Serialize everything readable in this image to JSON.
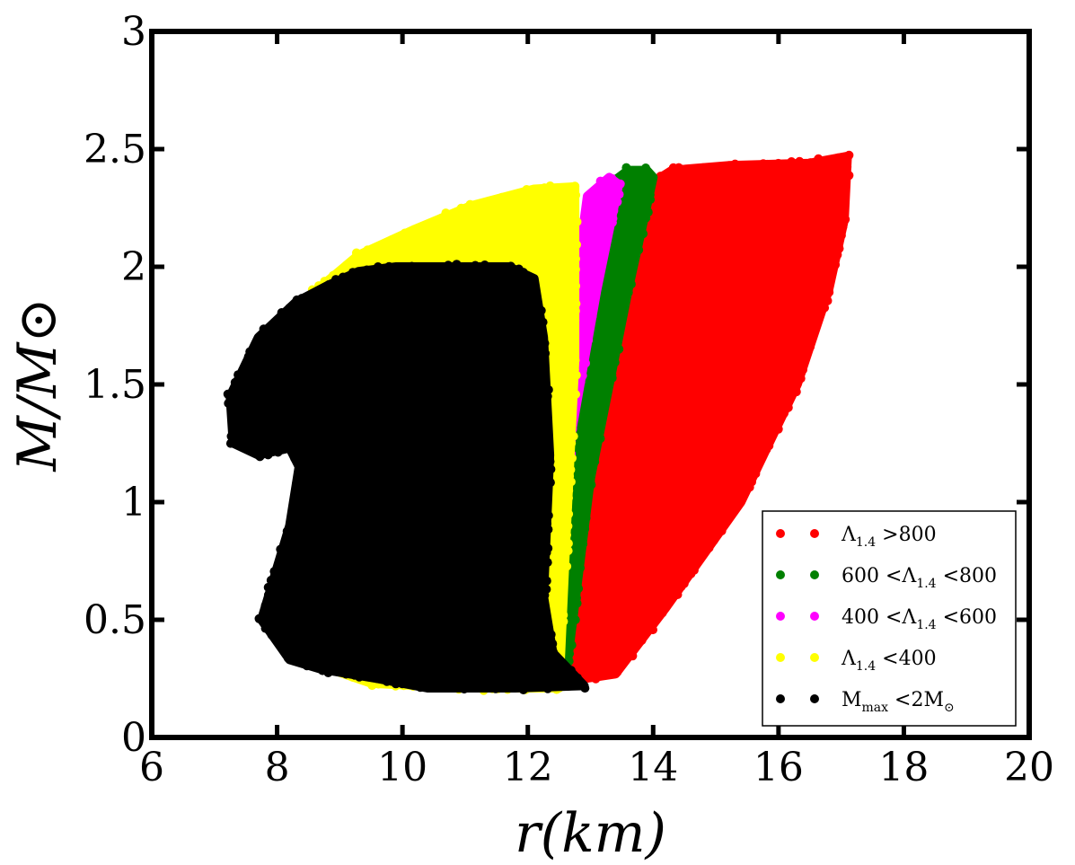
{
  "chart_data": {
    "type": "scatter",
    "xlabel": "r(km)",
    "ylabel": "M/M⊙",
    "xlim": [
      6,
      20
    ],
    "ylim": [
      0,
      3
    ],
    "xticks": [
      "6",
      "8",
      "10",
      "12",
      "14",
      "16",
      "18",
      "20"
    ],
    "yticks": [
      "0",
      "0.5",
      "1",
      "1.5",
      "2",
      "2.5",
      "3"
    ],
    "legend_position": "lower-right",
    "grid": false,
    "series": [
      {
        "name": "Λ1.4 >800",
        "legend_parts": [
          "Λ",
          "1.4",
          " >800"
        ],
        "color": "#ff0000",
        "envelope": [
          [
            12.5,
            0.29
          ],
          [
            12.9,
            0.25
          ],
          [
            13.4,
            0.27
          ],
          [
            14.2,
            0.55
          ],
          [
            15.4,
            1.0
          ],
          [
            16.3,
            1.5
          ],
          [
            16.8,
            1.9
          ],
          [
            17.05,
            2.2
          ],
          [
            17.1,
            2.47
          ],
          [
            16.5,
            2.44
          ],
          [
            15.2,
            2.43
          ],
          [
            14.3,
            2.41
          ],
          [
            14.0,
            2.36
          ],
          [
            13.0,
            1.6
          ],
          [
            12.5,
            1.0
          ],
          [
            12.1,
            0.45
          ]
        ]
      },
      {
        "name": "600 <Λ1.4 <800",
        "legend_parts": [
          "600 <Λ",
          "1.4",
          " <800"
        ],
        "color": "#008000",
        "envelope": [
          [
            12.2,
            0.28
          ],
          [
            12.6,
            0.25
          ],
          [
            13.0,
            1.1
          ],
          [
            13.6,
            1.9
          ],
          [
            14.0,
            2.38
          ],
          [
            13.9,
            2.41
          ],
          [
            13.6,
            2.41
          ],
          [
            13.4,
            2.37
          ],
          [
            13.05,
            1.9
          ],
          [
            12.6,
            1.2
          ],
          [
            12.25,
            0.5
          ]
        ]
      },
      {
        "name": "400 <Λ1.4 <600",
        "legend_parts": [
          "400 <Λ",
          "1.4",
          " <600"
        ],
        "color": "#ff00ff",
        "envelope": [
          [
            12.1,
            0.4
          ],
          [
            12.5,
            1.3
          ],
          [
            12.75,
            1.9
          ],
          [
            12.95,
            2.3
          ],
          [
            13.3,
            2.38
          ],
          [
            13.45,
            2.35
          ],
          [
            13.1,
            1.9
          ],
          [
            12.7,
            1.3
          ],
          [
            12.4,
            0.5
          ]
        ]
      },
      {
        "name": "Λ1.4 <400",
        "legend_parts": [
          "Λ",
          "1.4",
          " <400"
        ],
        "color": "#ffff00",
        "envelope": [
          [
            8.2,
            0.35
          ],
          [
            9.5,
            0.23
          ],
          [
            11.0,
            0.21
          ],
          [
            12.5,
            0.21
          ],
          [
            12.6,
            0.8
          ],
          [
            12.75,
            1.6
          ],
          [
            12.75,
            2.34
          ],
          [
            12.1,
            2.33
          ],
          [
            11.1,
            2.26
          ],
          [
            10.2,
            2.16
          ],
          [
            9.3,
            2.05
          ],
          [
            8.4,
            1.85
          ],
          [
            8.7,
            1.5
          ],
          [
            8.4,
            1.0
          ]
        ]
      },
      {
        "name": "Mmax <2M⊙",
        "legend_parts": [
          "M",
          "max",
          " <2M",
          "⊙"
        ],
        "color": "#000000",
        "envelope": [
          [
            7.3,
            1.25
          ],
          [
            7.25,
            1.45
          ],
          [
            7.7,
            1.7
          ],
          [
            8.3,
            1.85
          ],
          [
            8.8,
            1.92
          ],
          [
            9.3,
            1.98
          ],
          [
            9.9,
            2.0
          ],
          [
            11.7,
            2.0
          ],
          [
            12.1,
            1.95
          ],
          [
            12.25,
            1.7
          ],
          [
            12.35,
            1.2
          ],
          [
            12.25,
            0.6
          ],
          [
            12.4,
            0.36
          ],
          [
            12.9,
            0.22
          ],
          [
            11.8,
            0.21
          ],
          [
            10.4,
            0.21
          ],
          [
            9.6,
            0.25
          ],
          [
            8.7,
            0.29
          ],
          [
            8.2,
            0.33
          ],
          [
            7.75,
            0.5
          ],
          [
            8.2,
            0.9
          ],
          [
            8.35,
            1.15
          ],
          [
            8.2,
            1.23
          ],
          [
            7.7,
            1.2
          ]
        ]
      }
    ]
  }
}
